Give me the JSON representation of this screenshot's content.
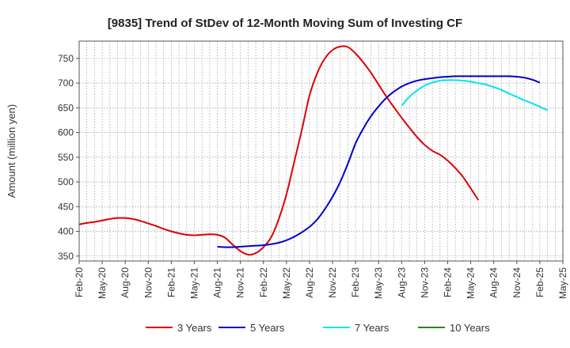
{
  "chart_data": {
    "type": "line",
    "title": "[9835]  Trend of StDev of 12-Month Moving Sum of Investing CF",
    "xlabel": "",
    "ylabel": "Amount (million yen)",
    "ylim": [
      340,
      785
    ],
    "yticks": [
      350,
      400,
      450,
      500,
      550,
      600,
      650,
      700,
      750
    ],
    "x_tick_labels": [
      "Feb-20",
      "May-20",
      "Aug-20",
      "Nov-20",
      "Feb-21",
      "May-21",
      "Aug-21",
      "Nov-21",
      "Feb-22",
      "May-22",
      "Aug-22",
      "Nov-22",
      "Feb-23",
      "May-23",
      "Aug-23",
      "Nov-23",
      "Feb-24",
      "May-24",
      "Aug-24",
      "Nov-24",
      "Feb-25",
      "May-25"
    ],
    "grid": true,
    "legend_position": "bottom",
    "series": [
      {
        "name": "3 Years",
        "color": "#dd0000",
        "start_index": 0,
        "values": [
          414,
          417,
          419,
          422,
          425,
          427,
          427,
          425,
          421,
          416,
          411,
          405,
          400,
          396,
          393,
          392,
          393,
          394,
          393,
          387,
          373,
          360,
          353,
          356,
          368,
          388,
          425,
          475,
          540,
          605,
          675,
          720,
          750,
          767,
          774,
          773,
          760,
          742,
          721,
          697,
          673,
          651,
          630,
          610,
          591,
          575,
          563,
          555,
          543,
          528,
          510,
          487,
          463
        ]
      },
      {
        "name": "5 Years",
        "color": "#0000cc",
        "start_index": 18,
        "values": [
          369,
          368,
          368,
          369,
          370,
          371,
          372,
          374,
          377,
          382,
          389,
          398,
          409,
          424,
          445,
          470,
          500,
          537,
          578,
          608,
          633,
          653,
          670,
          683,
          693,
          700,
          705,
          708,
          710,
          712,
          713,
          714,
          714,
          714,
          714,
          714,
          714,
          714,
          714,
          713,
          711,
          707,
          701
        ]
      },
      {
        "name": "7 Years",
        "color": "#00e5ee",
        "start_index": 42,
        "values": [
          654,
          672,
          685,
          695,
          701,
          705,
          706,
          706,
          705,
          703,
          700,
          697,
          692,
          686,
          679,
          672,
          665,
          659,
          652,
          645
        ]
      },
      {
        "name": "10 Years",
        "color": "#228822",
        "start_index": 0,
        "values": []
      }
    ]
  }
}
